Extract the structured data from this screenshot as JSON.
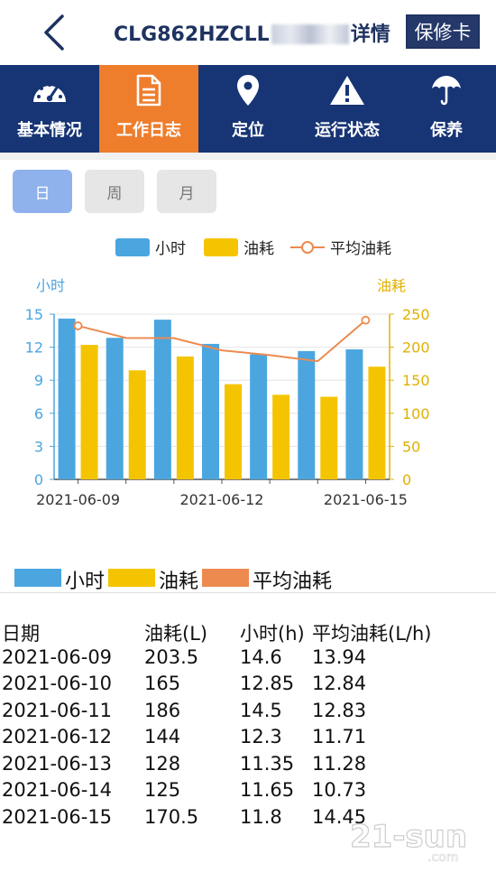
{
  "header": {
    "title_prefix": "CLG862HZCLL",
    "title_suffix": "详情",
    "repair_button": "保修卡"
  },
  "nav": {
    "items": [
      {
        "label": "基本情况",
        "icon": "dashboard-icon"
      },
      {
        "label": "工作日志",
        "icon": "log-icon",
        "active": true
      },
      {
        "label": "定位",
        "icon": "location-pin-icon"
      },
      {
        "label": "运行状态",
        "icon": "warning-icon"
      },
      {
        "label": "保养",
        "icon": "umbrella-icon"
      }
    ]
  },
  "period": {
    "day": "日",
    "week": "周",
    "month": "月",
    "selected": "日"
  },
  "colors": {
    "hours": "#4ba6e0",
    "fuel": "#f5c400",
    "avg": "#ec8a4f",
    "nav_bg": "#173474",
    "active_tab": "#ee7d2c"
  },
  "chart_data": {
    "type": "bar",
    "legend": [
      "小时",
      "油耗",
      "平均油耗"
    ],
    "left_axis_label": "小时",
    "right_axis_label": "油耗",
    "left_ylim": [
      0,
      15
    ],
    "left_ticks": [
      0,
      3,
      6,
      9,
      12,
      15
    ],
    "right_ylim": [
      0,
      250
    ],
    "right_ticks": [
      0,
      50,
      100,
      150,
      200,
      250
    ],
    "categories": [
      "2021-06-09",
      "2021-06-10",
      "2021-06-11",
      "2021-06-12",
      "2021-06-13",
      "2021-06-14",
      "2021-06-15"
    ],
    "x_tick_labels": [
      "2021-06-09",
      "2021-06-12",
      "2021-06-15"
    ],
    "series": [
      {
        "name": "小时",
        "type": "bar",
        "axis": "left",
        "values": [
          14.6,
          12.85,
          14.5,
          12.3,
          11.35,
          11.65,
          11.8
        ]
      },
      {
        "name": "油耗",
        "type": "bar",
        "axis": "right",
        "values": [
          203.5,
          165,
          186,
          144,
          128,
          125,
          170.5
        ]
      },
      {
        "name": "平均油耗",
        "type": "line",
        "axis": "left",
        "values": [
          13.94,
          12.84,
          12.83,
          11.71,
          11.28,
          10.73,
          14.45
        ]
      }
    ],
    "grid": true
  },
  "table": {
    "legend": [
      "小时",
      "油耗",
      "平均油耗"
    ],
    "headers": [
      "日期",
      "油耗(L)",
      "小时(h)",
      "平均油耗(L/h)"
    ],
    "rows": [
      [
        "2021-06-09",
        "203.5",
        "14.6",
        "13.94"
      ],
      [
        "2021-06-10",
        "165",
        "12.85",
        "12.84"
      ],
      [
        "2021-06-11",
        "186",
        "14.5",
        "12.83"
      ],
      [
        "2021-06-12",
        "144",
        "12.3",
        "11.71"
      ],
      [
        "2021-06-13",
        "128",
        "11.35",
        "11.28"
      ],
      [
        "2021-06-14",
        "125",
        "11.65",
        "10.73"
      ],
      [
        "2021-06-15",
        "170.5",
        "11.8",
        "14.45"
      ]
    ]
  },
  "watermark": "21-sun"
}
